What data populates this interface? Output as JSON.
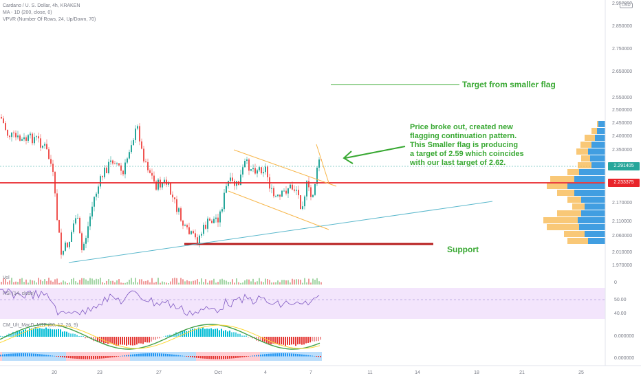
{
  "header": {
    "symbol_line": "Cardano / U. S. Dollar, 4h, KRAKEN",
    "indicator_ma": "MA - 1D (200, close, 0)",
    "indicator_vpvr": "VPVR (Number Of Rows, 24, Up/Down, 70)",
    "currency": "USD"
  },
  "panes": {
    "volume_label": "Vol",
    "rsi_label": "RSI (14, close)",
    "macd_label": "CM_Ult_MacD_MTF (60, 12, 26, 9)"
  },
  "annotations": {
    "target_flag": "Target from smaller flag",
    "breakout_note": [
      "Price broke out, created new",
      "flagging continuation pattern.",
      "This Smaller flag is producing",
      "a target of 2.59 which coincides",
      "with our last target of 2.62."
    ],
    "support": "Support"
  },
  "price_badges": {
    "current": "2.291405",
    "ma": "2.233375"
  },
  "colors": {
    "up": "#26a69a",
    "down": "#ef5350",
    "resistance_line": "#e8242a",
    "support_line": "#b71c1c",
    "trendline": "#5bb8cc",
    "flag_lines": "#f7b64a",
    "annotation_green": "#38a832",
    "current_badge": "#26a69a",
    "ma_badge": "#e8242a",
    "rsi_band": "#f3e5fc",
    "rsi_line": "#7e57c2",
    "vpvr_up": "#2196f3",
    "vpvr_down": "#f7b64a"
  },
  "chart_data": {
    "type": "candlestick",
    "title": "Cardano / U. S. Dollar, 4h, KRAKEN",
    "y_ticks": [
      "2.950000",
      "2.850000",
      "2.750000",
      "2.650000",
      "2.550000",
      "2.500000",
      "2.450000",
      "2.400000",
      "2.350000",
      "2.170000",
      "2.110000",
      "2.060000",
      "2.010000",
      "1.970000"
    ],
    "x_ticks": [
      "20",
      "23",
      "27",
      "Oct",
      "4",
      "7",
      "11",
      "14",
      "18",
      "21",
      "25"
    ],
    "rsi_ticks": [
      "50.00",
      "40.00"
    ],
    "volume_ticks": [
      "0"
    ],
    "macd_ticks": [
      "0.000000",
      "0.000000"
    ],
    "current_price": 2.291405,
    "ma_1d_200": 2.233375,
    "target": 2.59,
    "previous_target": 2.62
  }
}
